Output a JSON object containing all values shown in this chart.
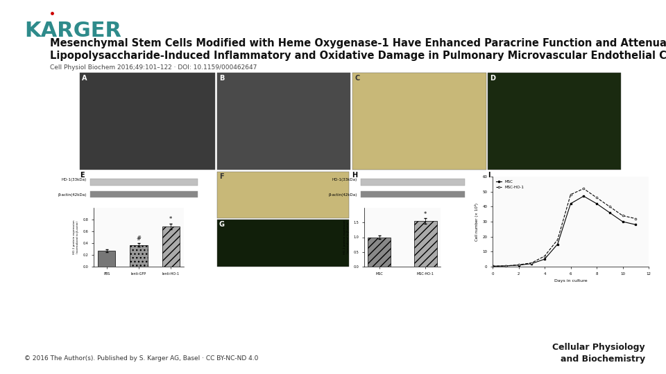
{
  "karger_color": "#2e8b8b",
  "karger_dot_color": "#cc0000",
  "title_line1": "Mesenchymal Stem Cells Modified with Heme Oxygenase-1 Have Enhanced Paracrine Function and Attenuate",
  "title_line2": "Lipopolysaccharide-Induced Inflammatory and Oxidative Damage in Pulmonary Microvascular Endothelial Cells",
  "citation": "Cell Physiol Biochem 2016;49:101–122 · DOI: 10.1159/000462647",
  "footer_left": "© 2016 The Author(s). Published by S. Karger AG, Basel · CC BY-NC-ND 4.0",
  "footer_right_line1": "Cellular Physiology",
  "footer_right_line2": "and Biochemistry",
  "bg_color": "#ffffff"
}
